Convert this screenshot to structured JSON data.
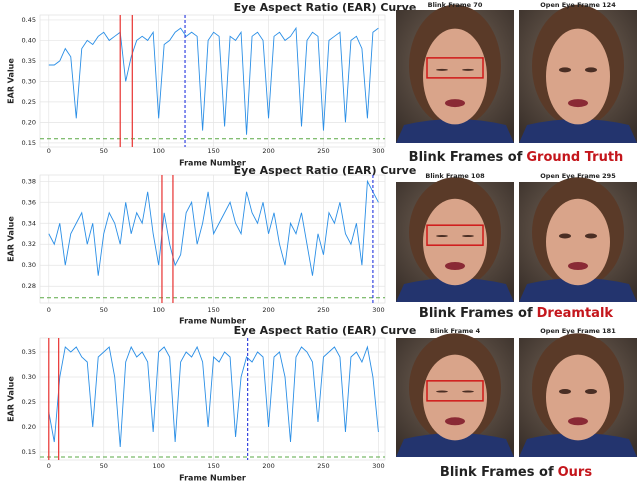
{
  "chart_data": [
    {
      "type": "line",
      "title": "Eye Aspect Ratio (EAR) Curve",
      "x_label": "Frame Number",
      "y_label": "EAR Value",
      "grid": true,
      "xlim": [
        -8,
        306
      ],
      "xticks": [
        0,
        50,
        100,
        150,
        200,
        250,
        300
      ],
      "ylim": [
        0.14,
        0.462
      ],
      "yticks": [
        0.15,
        {
          "value": 0.2,
          "label": "0.20"
        },
        0.25,
        {
          "value": 0.3,
          "label": "0.30"
        },
        0.35,
        {
          "value": 0.4,
          "label": "0.40"
        },
        0.45
      ],
      "x": [
        0,
        5,
        10,
        15,
        20,
        25,
        30,
        35,
        40,
        45,
        50,
        55,
        60,
        65,
        70,
        75,
        80,
        85,
        90,
        95,
        100,
        105,
        110,
        115,
        120,
        125,
        130,
        135,
        140,
        145,
        150,
        155,
        160,
        165,
        170,
        175,
        180,
        185,
        190,
        195,
        200,
        205,
        210,
        215,
        220,
        225,
        230,
        235,
        240,
        245,
        250,
        255,
        260,
        265,
        270,
        275,
        280,
        285,
        290,
        295,
        300
      ],
      "series": [
        {
          "color": "#2b8fe6",
          "values": [
            0.34,
            0.34,
            0.35,
            0.38,
            0.36,
            0.21,
            0.38,
            0.4,
            0.39,
            0.41,
            0.42,
            0.4,
            0.41,
            0.42,
            0.3,
            0.36,
            0.4,
            0.41,
            0.4,
            0.42,
            0.21,
            0.39,
            0.4,
            0.42,
            0.43,
            0.41,
            0.42,
            0.41,
            0.18,
            0.4,
            0.42,
            0.41,
            0.19,
            0.41,
            0.4,
            0.42,
            0.17,
            0.41,
            0.42,
            0.4,
            0.21,
            0.41,
            0.42,
            0.4,
            0.41,
            0.43,
            0.19,
            0.4,
            0.42,
            0.41,
            0.18,
            0.4,
            0.41,
            0.42,
            0.2,
            0.4,
            0.41,
            0.38,
            0.21,
            0.42,
            0.43
          ]
        }
      ],
      "threshold": 0.16,
      "threshold_color": "#5aa845",
      "red_lines": [
        65,
        76
      ],
      "red_color": "#e8312f",
      "blue_line": 124,
      "blue_color": "#2233dd"
    },
    {
      "type": "line",
      "title": "Eye Aspect Ratio (EAR) Curve",
      "x_label": "Frame Number",
      "y_label": "EAR Value",
      "grid": true,
      "xlim": [
        -8,
        306
      ],
      "xticks": [
        0,
        50,
        100,
        150,
        200,
        250,
        300
      ],
      "ylim": [
        0.264,
        0.386
      ],
      "yticks": [
        0.28,
        {
          "value": 0.3,
          "label": "0.30"
        },
        0.32,
        0.34,
        0.36,
        0.38
      ],
      "x": [
        0,
        5,
        10,
        15,
        20,
        25,
        30,
        35,
        40,
        45,
        50,
        55,
        60,
        65,
        70,
        75,
        80,
        85,
        90,
        95,
        100,
        105,
        110,
        115,
        120,
        125,
        130,
        135,
        140,
        145,
        150,
        155,
        160,
        165,
        170,
        175,
        180,
        185,
        190,
        195,
        200,
        205,
        210,
        215,
        220,
        225,
        230,
        235,
        240,
        245,
        250,
        255,
        260,
        265,
        270,
        275,
        280,
        285,
        290,
        295,
        300
      ],
      "series": [
        {
          "color": "#2b8fe6",
          "values": [
            0.33,
            0.32,
            0.34,
            0.3,
            0.33,
            0.34,
            0.35,
            0.32,
            0.34,
            0.29,
            0.33,
            0.35,
            0.34,
            0.32,
            0.36,
            0.33,
            0.35,
            0.34,
            0.37,
            0.33,
            0.3,
            0.35,
            0.32,
            0.3,
            0.31,
            0.35,
            0.36,
            0.32,
            0.34,
            0.37,
            0.33,
            0.34,
            0.35,
            0.36,
            0.34,
            0.33,
            0.37,
            0.35,
            0.34,
            0.36,
            0.33,
            0.35,
            0.32,
            0.3,
            0.34,
            0.33,
            0.35,
            0.32,
            0.29,
            0.33,
            0.31,
            0.35,
            0.34,
            0.36,
            0.33,
            0.32,
            0.34,
            0.3,
            0.38,
            0.37,
            0.36
          ]
        }
      ],
      "threshold": 0.269,
      "threshold_color": "#5aa845",
      "red_lines": [
        103,
        113
      ],
      "red_color": "#e8312f",
      "blue_line": 295,
      "blue_color": "#2233dd"
    },
    {
      "type": "line",
      "title": "Eye Aspect Ratio (EAR) Curve",
      "x_label": "Frame Number",
      "y_label": "EAR Value",
      "grid": true,
      "xlim": [
        -8,
        306
      ],
      "xticks": [
        0,
        50,
        100,
        150,
        200,
        250,
        300
      ],
      "ylim": [
        0.134,
        0.378
      ],
      "yticks": [
        0.15,
        {
          "value": 0.2,
          "label": "0.20"
        },
        0.25,
        {
          "value": 0.3,
          "label": "0.30"
        },
        0.35
      ],
      "x": [
        0,
        5,
        10,
        15,
        20,
        25,
        30,
        35,
        40,
        45,
        50,
        55,
        60,
        65,
        70,
        75,
        80,
        85,
        90,
        95,
        100,
        105,
        110,
        115,
        120,
        125,
        130,
        135,
        140,
        145,
        150,
        155,
        160,
        165,
        170,
        175,
        180,
        185,
        190,
        195,
        200,
        205,
        210,
        215,
        220,
        225,
        230,
        235,
        240,
        245,
        250,
        255,
        260,
        265,
        270,
        275,
        280,
        285,
        290,
        295,
        300
      ],
      "series": [
        {
          "color": "#2b8fe6",
          "values": [
            0.23,
            0.17,
            0.3,
            0.36,
            0.35,
            0.36,
            0.34,
            0.33,
            0.2,
            0.34,
            0.35,
            0.36,
            0.3,
            0.16,
            0.33,
            0.36,
            0.34,
            0.35,
            0.33,
            0.19,
            0.35,
            0.36,
            0.34,
            0.17,
            0.33,
            0.35,
            0.34,
            0.36,
            0.33,
            0.2,
            0.34,
            0.33,
            0.35,
            0.34,
            0.18,
            0.3,
            0.34,
            0.33,
            0.35,
            0.34,
            0.2,
            0.34,
            0.35,
            0.3,
            0.17,
            0.34,
            0.36,
            0.35,
            0.33,
            0.21,
            0.34,
            0.35,
            0.36,
            0.34,
            0.19,
            0.34,
            0.35,
            0.33,
            0.36,
            0.3,
            0.19
          ]
        }
      ],
      "threshold": 0.14,
      "threshold_color": "#5aa845",
      "red_lines": [
        0,
        9
      ],
      "red_color": "#e8312f",
      "blue_line": 181,
      "blue_color": "#2233dd"
    }
  ],
  "panels": [
    {
      "blink_label": "Blink Frame 70",
      "open_label": "Open Eye Frame 124",
      "caption": "Blink Frames of",
      "caption_highlight": "Ground Truth"
    },
    {
      "blink_label": "Blink Frame 108",
      "open_label": "Open Eye Frame 295",
      "caption": "Blink Frames of",
      "caption_highlight": "Dreamtalk"
    },
    {
      "blink_label": "Blink Frame 4",
      "open_label": "Open Eye Frame 181",
      "caption": "Blink Frames of",
      "caption_highlight": "Ours"
    }
  ]
}
